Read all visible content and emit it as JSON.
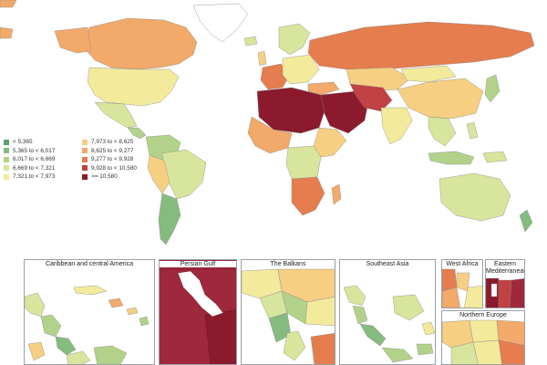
{
  "legend": {
    "items": [
      {
        "label": "< 5,365",
        "color": "#5e9e72"
      },
      {
        "label": "5,365 to < 6,017",
        "color": "#86bb7f"
      },
      {
        "label": "6,017 to < 6,669",
        "color": "#b3d289"
      },
      {
        "label": "6,669 to < 7,321",
        "color": "#d8e59c"
      },
      {
        "label": "7,321 to < 7,973",
        "color": "#f4ea9c"
      },
      {
        "label": "7,973 to < 8,625",
        "color": "#f6cf83"
      },
      {
        "label": "8,625 to < 9,277",
        "color": "#f2a96a"
      },
      {
        "label": "9,277 to < 9,928",
        "color": "#e57d4e"
      },
      {
        "label": "9,928 to < 10,580",
        "color": "#c04242"
      },
      {
        "label": ">= 10,580",
        "color": "#8b1a2c"
      }
    ]
  },
  "insets": [
    {
      "title": "Caribbean and central America"
    },
    {
      "title": "Persian Gulf"
    },
    {
      "title": "The Balkans"
    },
    {
      "title": "Southeast Asia"
    },
    {
      "title": "West Africa"
    },
    {
      "title": "Eastern Mediterranean"
    },
    {
      "title": "Northern Europe"
    }
  ]
}
